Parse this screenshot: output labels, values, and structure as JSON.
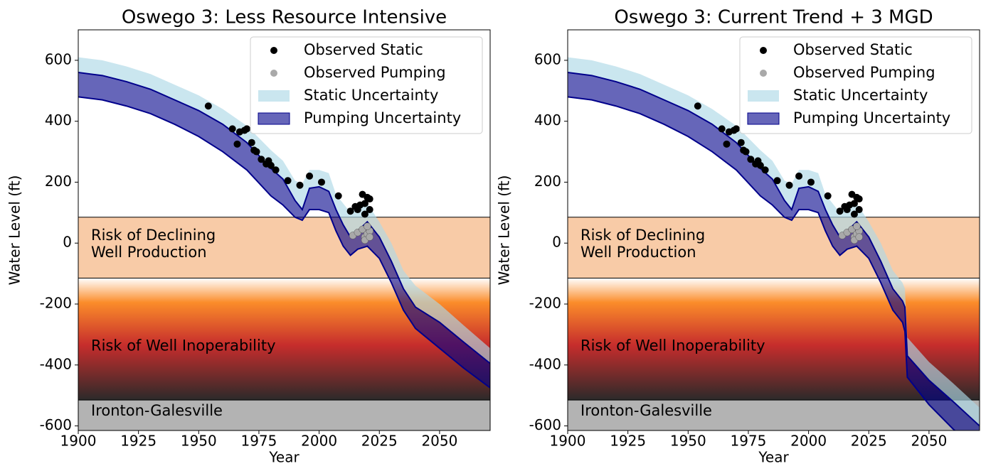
{
  "chart_data": [
    {
      "type": "band",
      "title": "Oswego 3: Less Resource Intensive",
      "xlabel": "Year",
      "ylabel": "Water Level (ft)",
      "xlim": [
        1900,
        2071
      ],
      "ylim": [
        -615,
        700
      ],
      "xticks": [
        1900,
        1925,
        1950,
        1975,
        2000,
        2025,
        2050
      ],
      "yticks": [
        -600,
        -400,
        -200,
        0,
        200,
        400,
        600
      ],
      "legend": "upper right",
      "zones": [
        {
          "label": [
            "Risk of Declining",
            "Well Production"
          ],
          "lower": -115,
          "upper": 85
        },
        {
          "label": [
            "Risk of Well Inoperability"
          ],
          "lower": -515,
          "upper": -115
        },
        {
          "label": [
            "Ironton-Galesville"
          ],
          "lower": -615,
          "upper": -515
        }
      ],
      "x": [
        1900,
        1910,
        1920,
        1930,
        1940,
        1950,
        1960,
        1970,
        1980,
        1985,
        1990,
        1993,
        1996,
        2000,
        2004,
        2007,
        2010,
        2013,
        2016,
        2020,
        2025,
        2030,
        2035,
        2040,
        2050,
        2060,
        2071
      ],
      "series": [
        {
          "name": "Static Uncertainty",
          "color": "#add8e6",
          "upper": [
            610,
            600,
            580,
            555,
            520,
            485,
            440,
            385,
            305,
            270,
            205,
            195,
            240,
            240,
            230,
            160,
            130,
            100,
            120,
            130,
            70,
            0,
            -90,
            -140,
            -200,
            -270,
            -345
          ],
          "lower": [
            560,
            550,
            530,
            505,
            470,
            435,
            390,
            330,
            245,
            210,
            140,
            110,
            180,
            185,
            170,
            110,
            60,
            20,
            40,
            70,
            20,
            -60,
            -150,
            -210,
            -260,
            -325,
            -395
          ]
        },
        {
          "name": "Pumping Uncertainty",
          "color": "#00008b",
          "upper": [
            560,
            550,
            530,
            505,
            470,
            435,
            390,
            330,
            245,
            210,
            140,
            110,
            180,
            185,
            170,
            110,
            60,
            20,
            40,
            70,
            20,
            -60,
            -150,
            -210,
            -260,
            -325,
            -395
          ],
          "lower": [
            480,
            470,
            450,
            425,
            390,
            350,
            300,
            240,
            155,
            125,
            85,
            75,
            110,
            110,
            100,
            40,
            -10,
            -40,
            -20,
            -10,
            -50,
            -130,
            -220,
            -280,
            -345,
            -410,
            -475
          ]
        }
      ],
      "points": [
        {
          "name": "Observed Static",
          "color": "#000000",
          "x": [
            1954,
            1964,
            1966,
            1967,
            1969,
            1970,
            1972,
            1973,
            1974,
            1976,
            1978,
            1979,
            1980,
            1982,
            1987,
            1992,
            1996,
            2001,
            2008,
            2013,
            2015,
            2016,
            2017,
            2018,
            2019,
            2020,
            2021,
            2019,
            2021
          ],
          "y": [
            450,
            375,
            325,
            365,
            370,
            375,
            330,
            305,
            300,
            275,
            260,
            270,
            255,
            240,
            205,
            190,
            220,
            200,
            155,
            105,
            120,
            110,
            125,
            160,
            130,
            150,
            110,
            95,
            145
          ]
        },
        {
          "name": "Observed Pumping",
          "color": "#a9a9a9",
          "x": [
            2014,
            2016,
            2018,
            2019,
            2020,
            2021,
            2019,
            2020,
            2021
          ],
          "y": [
            25,
            35,
            45,
            20,
            30,
            40,
            10,
            55,
            20
          ]
        }
      ]
    },
    {
      "type": "band",
      "title": "Oswego 3: Current Trend + 3 MGD",
      "xlabel": "Year",
      "ylabel": "Water Level (ft)",
      "xlim": [
        1900,
        2071
      ],
      "ylim": [
        -615,
        700
      ],
      "xticks": [
        1900,
        1925,
        1950,
        1975,
        2000,
        2025,
        2050
      ],
      "yticks": [
        -600,
        -400,
        -200,
        0,
        200,
        400,
        600
      ],
      "legend": "upper right",
      "zones": [
        {
          "label": [
            "Risk of Declining",
            "Well Production"
          ],
          "lower": -115,
          "upper": 85
        },
        {
          "label": [
            "Risk of Well Inoperability"
          ],
          "lower": -515,
          "upper": -115
        },
        {
          "label": [
            "Ironton-Galesville"
          ],
          "lower": -615,
          "upper": -515
        }
      ],
      "x": [
        1900,
        1910,
        1920,
        1930,
        1940,
        1950,
        1960,
        1970,
        1980,
        1985,
        1990,
        1993,
        1996,
        2000,
        2004,
        2007,
        2010,
        2013,
        2016,
        2020,
        2025,
        2030,
        2035,
        2039,
        2040,
        2041,
        2050,
        2060,
        2071
      ],
      "series": [
        {
          "name": "Static Uncertainty",
          "color": "#add8e6",
          "upper": [
            610,
            600,
            580,
            555,
            520,
            485,
            440,
            385,
            305,
            270,
            205,
            195,
            240,
            240,
            230,
            160,
            130,
            100,
            120,
            130,
            70,
            0,
            -90,
            -130,
            -150,
            -310,
            -390,
            -460,
            -540
          ],
          "lower": [
            560,
            550,
            530,
            505,
            470,
            435,
            390,
            330,
            245,
            210,
            140,
            110,
            180,
            185,
            170,
            110,
            60,
            20,
            40,
            70,
            20,
            -60,
            -150,
            -190,
            -210,
            -370,
            -450,
            -520,
            -600
          ]
        },
        {
          "name": "Pumping Uncertainty",
          "color": "#00008b",
          "upper": [
            560,
            550,
            530,
            505,
            470,
            435,
            390,
            330,
            245,
            210,
            140,
            110,
            180,
            185,
            170,
            110,
            60,
            20,
            40,
            70,
            20,
            -60,
            -150,
            -190,
            -210,
            -370,
            -450,
            -520,
            -600
          ],
          "lower": [
            480,
            470,
            450,
            425,
            390,
            350,
            300,
            240,
            155,
            125,
            85,
            75,
            110,
            110,
            100,
            40,
            -10,
            -40,
            -20,
            -10,
            -50,
            -130,
            -220,
            -260,
            -290,
            -440,
            -530,
            -610,
            -690
          ]
        }
      ],
      "points": [
        {
          "name": "Observed Static",
          "color": "#000000",
          "x": [
            1954,
            1964,
            1966,
            1967,
            1969,
            1970,
            1972,
            1973,
            1974,
            1976,
            1978,
            1979,
            1980,
            1982,
            1987,
            1992,
            1996,
            2001,
            2008,
            2013,
            2015,
            2016,
            2017,
            2018,
            2019,
            2020,
            2021,
            2019,
            2021
          ],
          "y": [
            450,
            375,
            325,
            365,
            370,
            375,
            330,
            305,
            300,
            275,
            260,
            270,
            255,
            240,
            205,
            190,
            220,
            200,
            155,
            105,
            120,
            110,
            125,
            160,
            130,
            150,
            110,
            95,
            145
          ]
        },
        {
          "name": "Observed Pumping",
          "color": "#a9a9a9",
          "x": [
            2014,
            2016,
            2018,
            2019,
            2020,
            2021,
            2019,
            2020,
            2021
          ],
          "y": [
            25,
            35,
            45,
            20,
            30,
            40,
            10,
            55,
            20
          ]
        }
      ]
    }
  ]
}
